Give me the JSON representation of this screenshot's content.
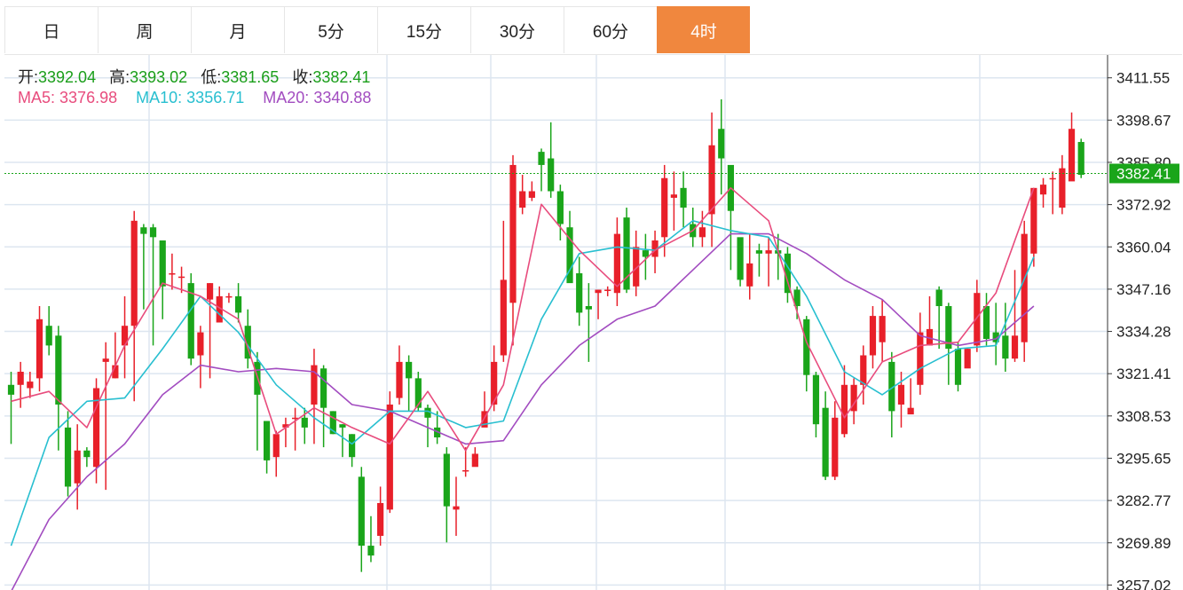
{
  "tabs": [
    {
      "label": "日",
      "active": false
    },
    {
      "label": "周",
      "active": false
    },
    {
      "label": "月",
      "active": false
    },
    {
      "label": "5分",
      "active": false
    },
    {
      "label": "15分",
      "active": false
    },
    {
      "label": "30分",
      "active": false
    },
    {
      "label": "60分",
      "active": false
    },
    {
      "label": "4时",
      "active": true
    }
  ],
  "ohlc_info": {
    "open_label": "开:",
    "open": "3392.04",
    "high_label": "高:",
    "high": "3393.02",
    "low_label": "低:",
    "low": "3381.65",
    "close_label": "收:",
    "close": "3382.41"
  },
  "ma_info": {
    "ma5_label": "MA5:",
    "ma5": "3376.98",
    "ma10_label": "MA10:",
    "ma10": "3356.71",
    "ma20_label": "MA20:",
    "ma20": "3340.88"
  },
  "colors": {
    "up": "#e8202a",
    "down": "#1aa51a",
    "ma5": "#e84c7d",
    "ma10": "#28bfd0",
    "ma20": "#a24cc0",
    "current_line": "#1aa51a",
    "accent": "#f0873e"
  },
  "current_price_label": "3382.41",
  "chart_data": {
    "type": "candlestick",
    "y_ticks": [
      "3411.55",
      "3398.67",
      "3385.80",
      "3372.92",
      "3360.04",
      "3347.16",
      "3334.28",
      "3321.41",
      "3308.53",
      "3295.65",
      "3282.77",
      "3269.89",
      "3257.02"
    ],
    "ylim": [
      3255.5,
      3418.5
    ],
    "current_price": 3382.41,
    "candles": [
      [
        3318,
        3315,
        3322,
        3300
      ],
      [
        3318,
        3322,
        3325,
        3311
      ],
      [
        3317,
        3319,
        3322,
        3314
      ],
      [
        3320,
        3338,
        3342,
        3316
      ],
      [
        3336,
        3330,
        3342,
        3327
      ],
      [
        3333,
        3312,
        3336,
        3298
      ],
      [
        3305,
        3287,
        3310,
        3284
      ],
      [
        3288,
        3298,
        3306,
        3280
      ],
      [
        3298,
        3296,
        3299,
        3293
      ],
      [
        3293,
        3317,
        3320,
        3288
      ],
      [
        3325,
        3326,
        3331,
        3286
      ],
      [
        3320,
        3324,
        3334,
        3320
      ],
      [
        3330,
        3336,
        3345,
        3320
      ],
      [
        3336,
        3368,
        3371,
        3313
      ],
      [
        3366,
        3364,
        3367,
        3341
      ],
      [
        3366,
        3363,
        3367,
        3330
      ],
      [
        3362,
        3348,
        3362,
        3338
      ],
      [
        3352,
        3352,
        3358,
        3347
      ],
      [
        3351,
        3351,
        3354,
        3346
      ],
      [
        3349,
        3326,
        3352,
        3324
      ],
      [
        3327,
        3334,
        3336,
        3317
      ],
      [
        3344,
        3349,
        3349,
        3320
      ],
      [
        3337,
        3345,
        3348,
        3337
      ],
      [
        3345,
        3345,
        3346,
        3343
      ],
      [
        3345,
        3340,
        3349,
        3337
      ],
      [
        3336,
        3326,
        3341,
        3323
      ],
      [
        3325,
        3315,
        3328,
        3298
      ],
      [
        3307,
        3295,
        3304,
        3291
      ],
      [
        3296,
        3303,
        3304,
        3290
      ],
      [
        3305,
        3306,
        3308,
        3299
      ],
      [
        3308,
        3308,
        3311,
        3298
      ],
      [
        3308,
        3305,
        3311,
        3300
      ],
      [
        3312,
        3324,
        3329,
        3300
      ],
      [
        3323,
        3311,
        3324,
        3299
      ],
      [
        3310,
        3303,
        3310,
        3303
      ],
      [
        3306,
        3305,
        3306,
        3296
      ],
      [
        3303,
        3296,
        3303,
        3293
      ],
      [
        3290,
        3269,
        3293,
        3261
      ],
      [
        3269,
        3266,
        3278,
        3264
      ],
      [
        3272,
        3282,
        3287,
        3269
      ],
      [
        3280,
        3312,
        3316,
        3279
      ],
      [
        3314,
        3325,
        3330,
        3312
      ],
      [
        3325,
        3320,
        3327,
        3310
      ],
      [
        3320,
        3311,
        3322,
        3310
      ],
      [
        3311,
        3308,
        3312,
        3299
      ],
      [
        3305,
        3302,
        3310,
        3300
      ],
      [
        3297,
        3281,
        3299,
        3270
      ],
      [
        3280,
        3281,
        3290,
        3272
      ],
      [
        3292,
        3292,
        3299,
        3290
      ],
      [
        3293,
        3297,
        3299,
        3295
      ],
      [
        3305,
        3310,
        3316,
        3306
      ],
      [
        3312,
        3325,
        3330,
        3310
      ],
      [
        3327,
        3350,
        3368,
        3325
      ],
      [
        3343,
        3385,
        3388,
        3330
      ],
      [
        3372,
        3377,
        3382,
        3370
      ],
      [
        3375,
        3377,
        3380,
        3374
      ],
      [
        3389,
        3385,
        3390,
        3377
      ],
      [
        3387,
        3377,
        3398,
        3375
      ],
      [
        3377,
        3367,
        3379,
        3362
      ],
      [
        3366,
        3349,
        3371,
        3351
      ],
      [
        3352,
        3340,
        3357,
        3336
      ],
      [
        3342,
        3341,
        3349,
        3325
      ],
      [
        3346,
        3347,
        3347,
        3338
      ],
      [
        3347,
        3347,
        3348,
        3345
      ],
      [
        3346,
        3364,
        3369,
        3342
      ],
      [
        3369,
        3347,
        3372,
        3346
      ],
      [
        3348,
        3360,
        3365,
        3345
      ],
      [
        3359,
        3357,
        3364,
        3350
      ],
      [
        3357,
        3362,
        3365,
        3352
      ],
      [
        3363,
        3381,
        3385,
        3357
      ],
      [
        3375,
        3376,
        3383,
        3365
      ],
      [
        3378,
        3372,
        3383,
        3366
      ],
      [
        3367,
        3363,
        3372,
        3360
      ],
      [
        3363,
        3366,
        3371,
        3360
      ],
      [
        3370,
        3391,
        3401,
        3360
      ],
      [
        3396,
        3387,
        3405,
        3376
      ],
      [
        3385,
        3371,
        3380,
        3353
      ],
      [
        3363,
        3350,
        3361,
        3348
      ],
      [
        3348,
        3355,
        3364,
        3344
      ],
      [
        3359,
        3358,
        3361,
        3351
      ],
      [
        3358,
        3359,
        3363,
        3348
      ],
      [
        3359,
        3358,
        3364,
        3350
      ],
      [
        3358,
        3346,
        3360,
        3343
      ],
      [
        3347,
        3342,
        3348,
        3338
      ],
      [
        3338,
        3321,
        3339,
        3316
      ],
      [
        3321,
        3306,
        3322,
        3302
      ],
      [
        3311,
        3290,
        3316,
        3289
      ],
      [
        3290,
        3308,
        3313,
        3289
      ],
      [
        3303,
        3318,
        3324,
        3302
      ],
      [
        3310,
        3318,
        3320,
        3306
      ],
      [
        3318,
        3327,
        3330,
        3312
      ],
      [
        3327,
        3339,
        3342,
        3323
      ],
      [
        3331,
        3339,
        3344,
        3325
      ],
      [
        3325,
        3310,
        3328,
        3302
      ],
      [
        3312,
        3318,
        3322,
        3305
      ],
      [
        3309,
        3311,
        3320,
        3310
      ],
      [
        3318,
        3334,
        3340,
        3315
      ],
      [
        3330,
        3335,
        3345,
        3330
      ],
      [
        3347,
        3342,
        3348,
        3329
      ],
      [
        3342,
        3329,
        3343,
        3318
      ],
      [
        3329,
        3318,
        3331,
        3316
      ],
      [
        3323,
        3329,
        3329,
        3326
      ],
      [
        3330,
        3346,
        3350,
        3328
      ],
      [
        3342,
        3332,
        3346,
        3330
      ],
      [
        3334,
        3331,
        3343,
        3324
      ],
      [
        3333,
        3326,
        3343,
        3322
      ],
      [
        3326,
        3333,
        3353,
        3325
      ],
      [
        3331,
        3364,
        3368,
        3325
      ],
      [
        3358,
        3378,
        3378,
        3354
      ],
      [
        3376,
        3379,
        3381,
        3372
      ],
      [
        3381,
        3381,
        3383,
        3370
      ],
      [
        3372,
        3384,
        3388,
        3370
      ],
      [
        3380,
        3396,
        3401,
        3381
      ],
      [
        3392,
        3382,
        3393,
        3381
      ]
    ],
    "ma5": [
      [
        0,
        3313
      ],
      [
        4,
        3316
      ],
      [
        8,
        3305
      ],
      [
        12,
        3330
      ],
      [
        16,
        3349
      ],
      [
        20,
        3345
      ],
      [
        24,
        3338
      ],
      [
        28,
        3303
      ],
      [
        32,
        3311
      ],
      [
        36,
        3305
      ],
      [
        40,
        3300
      ],
      [
        44,
        3316
      ],
      [
        48,
        3298
      ],
      [
        52,
        3318
      ],
      [
        56,
        3373
      ],
      [
        60,
        3359
      ],
      [
        64,
        3348
      ],
      [
        68,
        3359
      ],
      [
        72,
        3365
      ],
      [
        76,
        3378
      ],
      [
        80,
        3368
      ],
      [
        84,
        3331
      ],
      [
        88,
        3308
      ],
      [
        92,
        3325
      ],
      [
        96,
        3330
      ],
      [
        100,
        3331
      ],
      [
        104,
        3346
      ],
      [
        108,
        3378
      ]
    ],
    "ma10": [
      [
        0,
        3269
      ],
      [
        4,
        3302
      ],
      [
        8,
        3313
      ],
      [
        12,
        3314
      ],
      [
        16,
        3329
      ],
      [
        20,
        3345
      ],
      [
        24,
        3334
      ],
      [
        28,
        3318
      ],
      [
        32,
        3308
      ],
      [
        36,
        3300
      ],
      [
        40,
        3310
      ],
      [
        44,
        3310
      ],
      [
        48,
        3305
      ],
      [
        52,
        3307
      ],
      [
        56,
        3338
      ],
      [
        60,
        3358
      ],
      [
        64,
        3360
      ],
      [
        68,
        3359
      ],
      [
        72,
        3368
      ],
      [
        76,
        3365
      ],
      [
        80,
        3363
      ],
      [
        84,
        3345
      ],
      [
        88,
        3322
      ],
      [
        92,
        3315
      ],
      [
        96,
        3323
      ],
      [
        100,
        3329
      ],
      [
        104,
        3330
      ],
      [
        108,
        3357
      ]
    ],
    "ma20": [
      [
        0,
        3255
      ],
      [
        4,
        3277
      ],
      [
        8,
        3290
      ],
      [
        12,
        3300
      ],
      [
        16,
        3315
      ],
      [
        20,
        3324
      ],
      [
        24,
        3322
      ],
      [
        28,
        3323
      ],
      [
        32,
        3322
      ],
      [
        36,
        3312
      ],
      [
        40,
        3310
      ],
      [
        44,
        3305
      ],
      [
        48,
        3300
      ],
      [
        52,
        3301
      ],
      [
        56,
        3318
      ],
      [
        60,
        3330
      ],
      [
        64,
        3338
      ],
      [
        68,
        3342
      ],
      [
        72,
        3353
      ],
      [
        76,
        3364
      ],
      [
        80,
        3364
      ],
      [
        84,
        3358
      ],
      [
        88,
        3350
      ],
      [
        92,
        3344
      ],
      [
        96,
        3333
      ],
      [
        100,
        3330
      ],
      [
        104,
        3332
      ],
      [
        108,
        3342
      ]
    ]
  }
}
